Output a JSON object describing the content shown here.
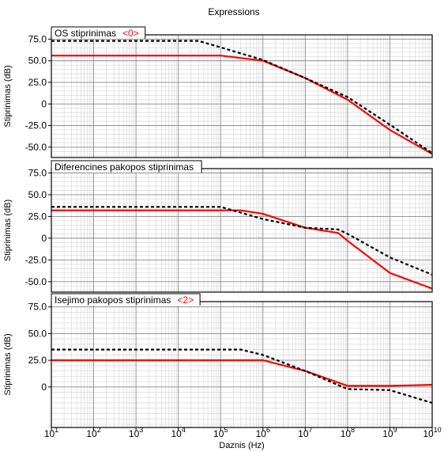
{
  "chart_data": {
    "type": "line",
    "title": "Expressions",
    "xlabel": "Daznis (Hz)",
    "xscale": "log",
    "xlim": [
      10,
      10000000000
    ],
    "x_tick_labels": [
      {
        "base": "10",
        "exp": "1"
      },
      {
        "base": "10",
        "exp": "2"
      },
      {
        "base": "10",
        "exp": "3"
      },
      {
        "base": "10",
        "exp": "4"
      },
      {
        "base": "10",
        "exp": "5"
      },
      {
        "base": "10",
        "exp": "6"
      },
      {
        "base": "10",
        "exp": "7"
      },
      {
        "base": "10",
        "exp": "8"
      },
      {
        "base": "10",
        "exp": "9"
      },
      {
        "base": "10",
        "exp": "10"
      }
    ],
    "grid": true,
    "colors": {
      "solid": "#ff0000",
      "dashed": "#000000"
    },
    "panels": [
      {
        "label": "OS stiprinimas",
        "index_label": "<0>",
        "ylabel": "Stiprinimas (dB)",
        "ylim": [
          -62,
          80
        ],
        "yticks": [
          "75.0",
          "50.0",
          "25.0",
          "0",
          "-25.0",
          "-50.0"
        ],
        "ytick_values": [
          75,
          50,
          25,
          0,
          -25,
          -50
        ],
        "series": [
          {
            "style": "solid",
            "x": [
              10,
              100000,
              1000000,
              10000000,
              100000000,
              1000000000,
              10000000000
            ],
            "y": [
              56,
              56,
              50,
              30,
              5,
              -30,
              -58
            ]
          },
          {
            "style": "dashed",
            "x": [
              10,
              30000,
              1000000,
              10000000,
              100000000,
              1000000000,
              10000000000
            ],
            "y": [
              73,
              73,
              51,
              30,
              8,
              -24,
              -57
            ]
          }
        ]
      },
      {
        "label": "Diferencines pakopos stiprinimas",
        "index_label": "",
        "ylabel": "Stiprinimas (dB)",
        "ylim": [
          -62,
          80
        ],
        "yticks": [
          "75.0",
          "50.0",
          "25.0",
          "0",
          "-25.0",
          "-50.0"
        ],
        "ytick_values": [
          75,
          50,
          25,
          0,
          -25,
          -50
        ],
        "series": [
          {
            "style": "solid",
            "x": [
              10,
              300000,
              1000000,
              10000000,
              60000000,
              100000000,
              1000000000,
              10000000000
            ],
            "y": [
              32,
              32,
              28,
              12,
              6,
              -3,
              -40,
              -58
            ]
          },
          {
            "style": "dashed",
            "x": [
              10,
              100000,
              1000000,
              10000000,
              60000000,
              100000000,
              1000000000,
              10000000000
            ],
            "y": [
              36,
              36,
              22,
              12,
              10,
              5,
              -22,
              -42
            ]
          }
        ]
      },
      {
        "label": "Isejimo pakopos stiprinimas",
        "index_label": "<2>",
        "ylabel": "Stiprinimas (dB)",
        "ylim": [
          -38,
          80
        ],
        "yticks": [
          "75.0",
          "50.0",
          "25.0",
          "0"
        ],
        "ytick_values": [
          75,
          50,
          25,
          0
        ],
        "series": [
          {
            "style": "solid",
            "x": [
              10,
              1000000,
              10000000,
              100000000,
              1000000000,
              10000000000
            ],
            "y": [
              25,
              25,
              15,
              1,
              1,
              2
            ]
          },
          {
            "style": "dashed",
            "x": [
              10,
              300000,
              1000000,
              10000000,
              100000000,
              1000000000,
              10000000000
            ],
            "y": [
              35,
              35,
              30,
              15,
              -2,
              -3,
              -15
            ]
          }
        ]
      }
    ]
  }
}
